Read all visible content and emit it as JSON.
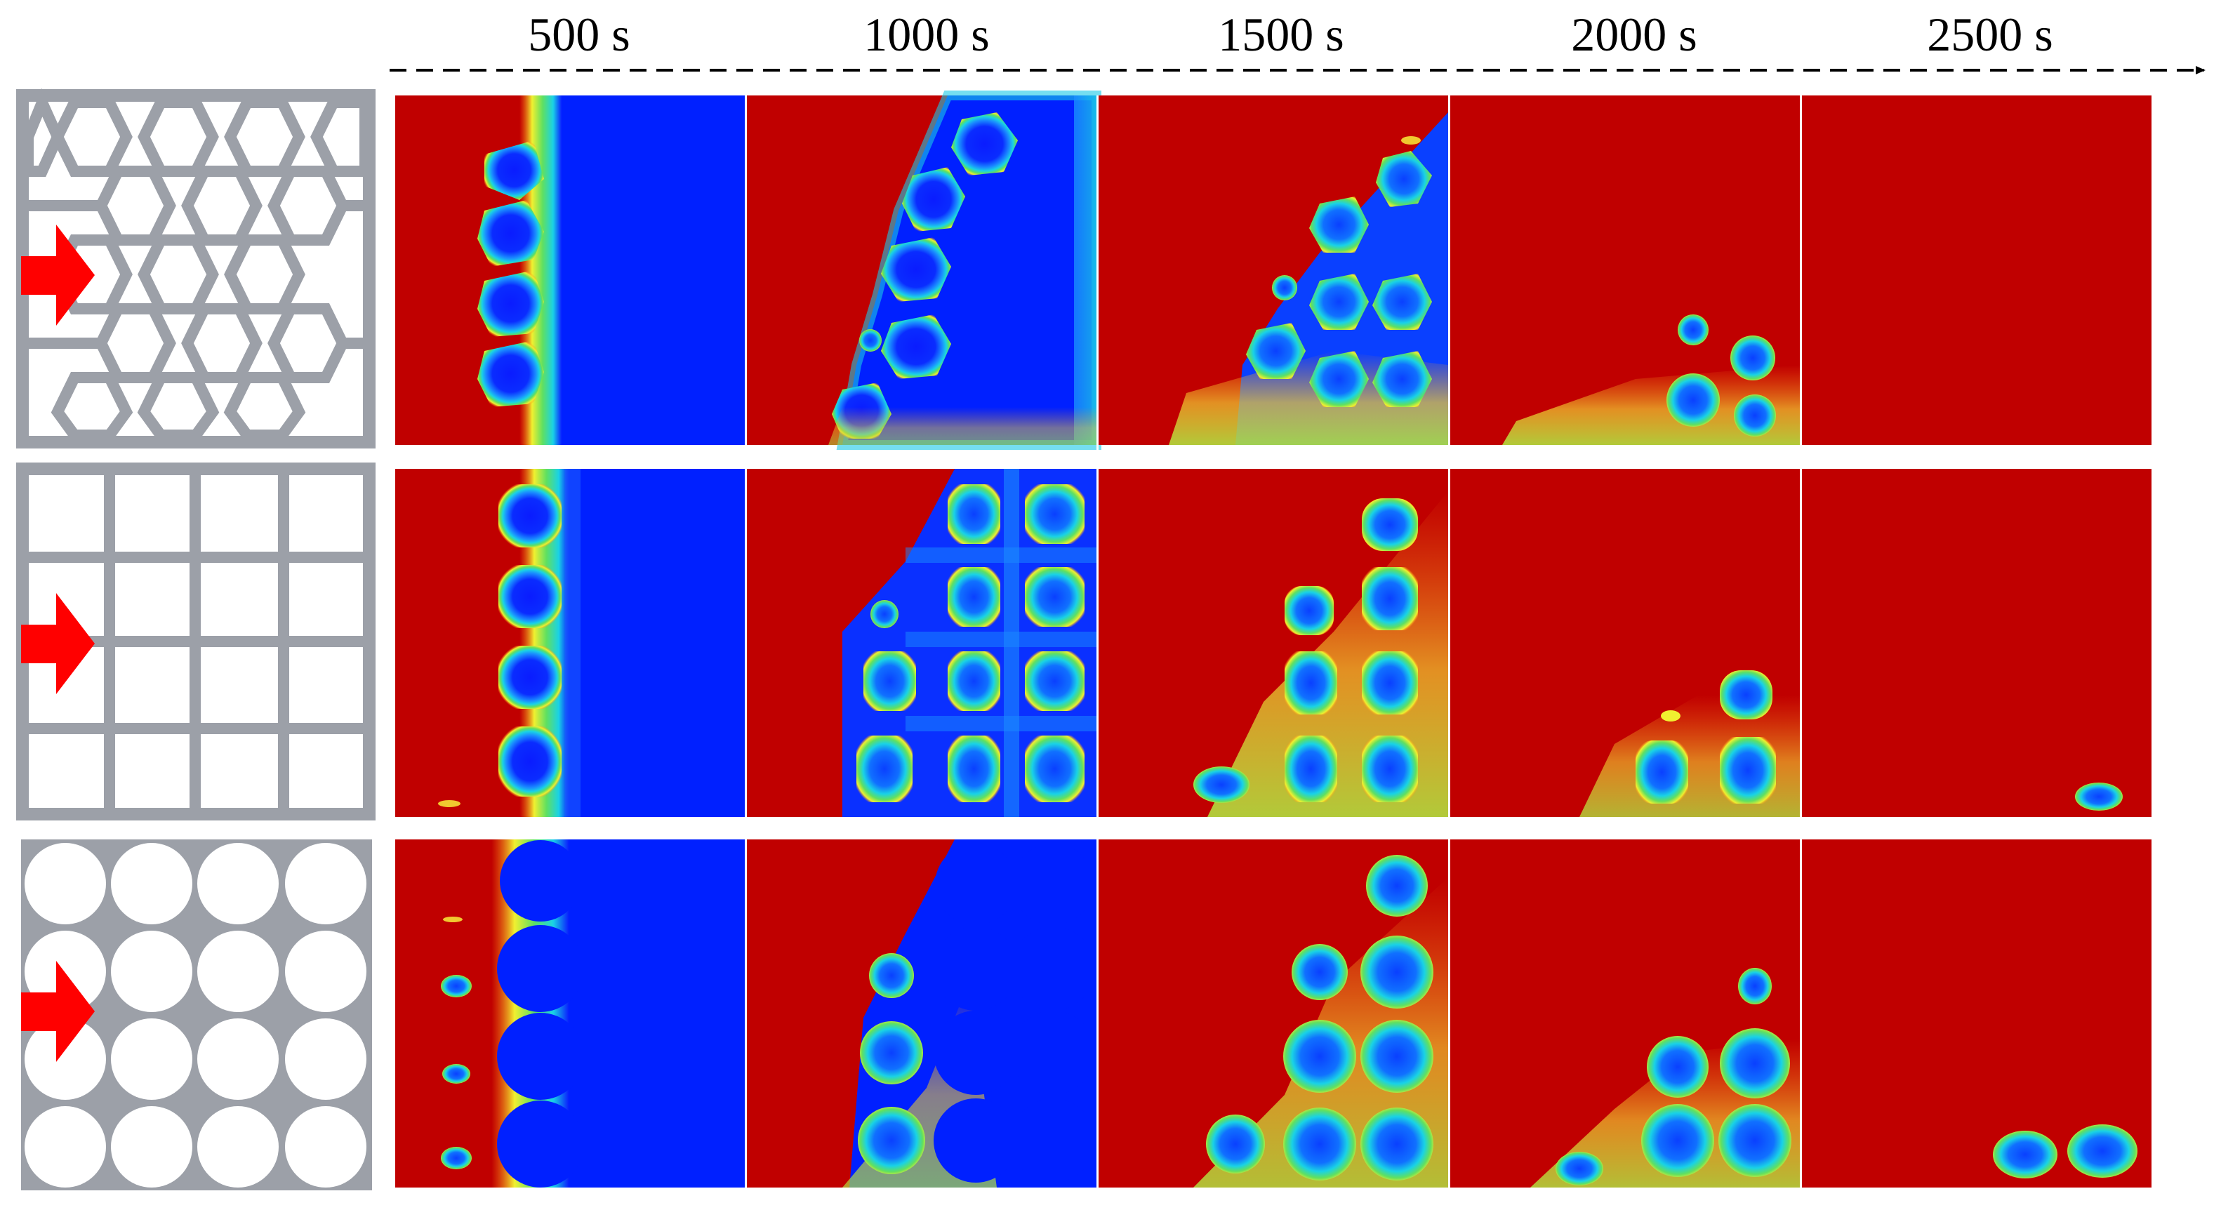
{
  "timeline": {
    "labels": [
      "500 s",
      "1000 s",
      "1500 s",
      "2000 s",
      "2500 s"
    ]
  },
  "structures": [
    {
      "icon": "hexagon-lattice-icon"
    },
    {
      "icon": "square-lattice-icon"
    },
    {
      "icon": "circle-lattice-icon"
    }
  ],
  "colors": {
    "frame_gray": "#9ca0a8",
    "arrow_red": "#ff0000",
    "melted_red": "#c00000",
    "solid_blue": "#0020ff",
    "cyan": "#19d2e6",
    "green": "#60e060",
    "yellow": "#f0f030",
    "orange": "#ff8c14"
  }
}
